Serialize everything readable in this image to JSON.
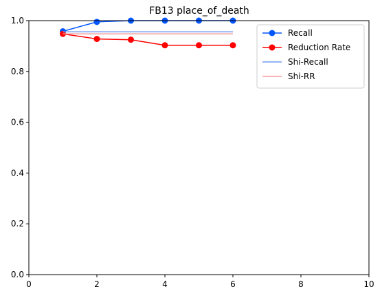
{
  "chart_data": {
    "type": "line",
    "title": "FB13 place_of_death",
    "xlabel": "",
    "ylabel": "",
    "xlim": [
      0,
      10
    ],
    "ylim": [
      0,
      1
    ],
    "xticks": [
      0,
      2,
      4,
      6,
      8,
      10
    ],
    "yticks": [
      0.0,
      0.2,
      0.4,
      0.6,
      0.8,
      1.0
    ],
    "xtick_labels": [
      "0",
      "2",
      "4",
      "6",
      "8",
      "10"
    ],
    "ytick_labels": [
      "0.0",
      "0.2",
      "0.4",
      "0.6",
      "0.8",
      "1.0"
    ],
    "grid": false,
    "legend_position": "top-right",
    "series": [
      {
        "name": "Recall",
        "color": "#0055ff",
        "marker": true,
        "x": [
          1,
          2,
          3,
          4,
          5,
          6
        ],
        "y": [
          0.958,
          0.995,
          1.0,
          1.0,
          1.0,
          1.0
        ]
      },
      {
        "name": "Reduction Rate",
        "color": "#ff0000",
        "marker": true,
        "x": [
          1,
          2,
          3,
          4,
          5,
          6
        ],
        "y": [
          0.948,
          0.928,
          0.925,
          0.903,
          0.903,
          0.903
        ]
      },
      {
        "name": "Shi-Recall",
        "color": "#6f9cf0",
        "marker": false,
        "x": [
          1,
          6
        ],
        "y": [
          0.956,
          0.956
        ]
      },
      {
        "name": "Shi-RR",
        "color": "#f59a9a",
        "marker": false,
        "x": [
          1,
          6
        ],
        "y": [
          0.948,
          0.948
        ]
      }
    ]
  }
}
